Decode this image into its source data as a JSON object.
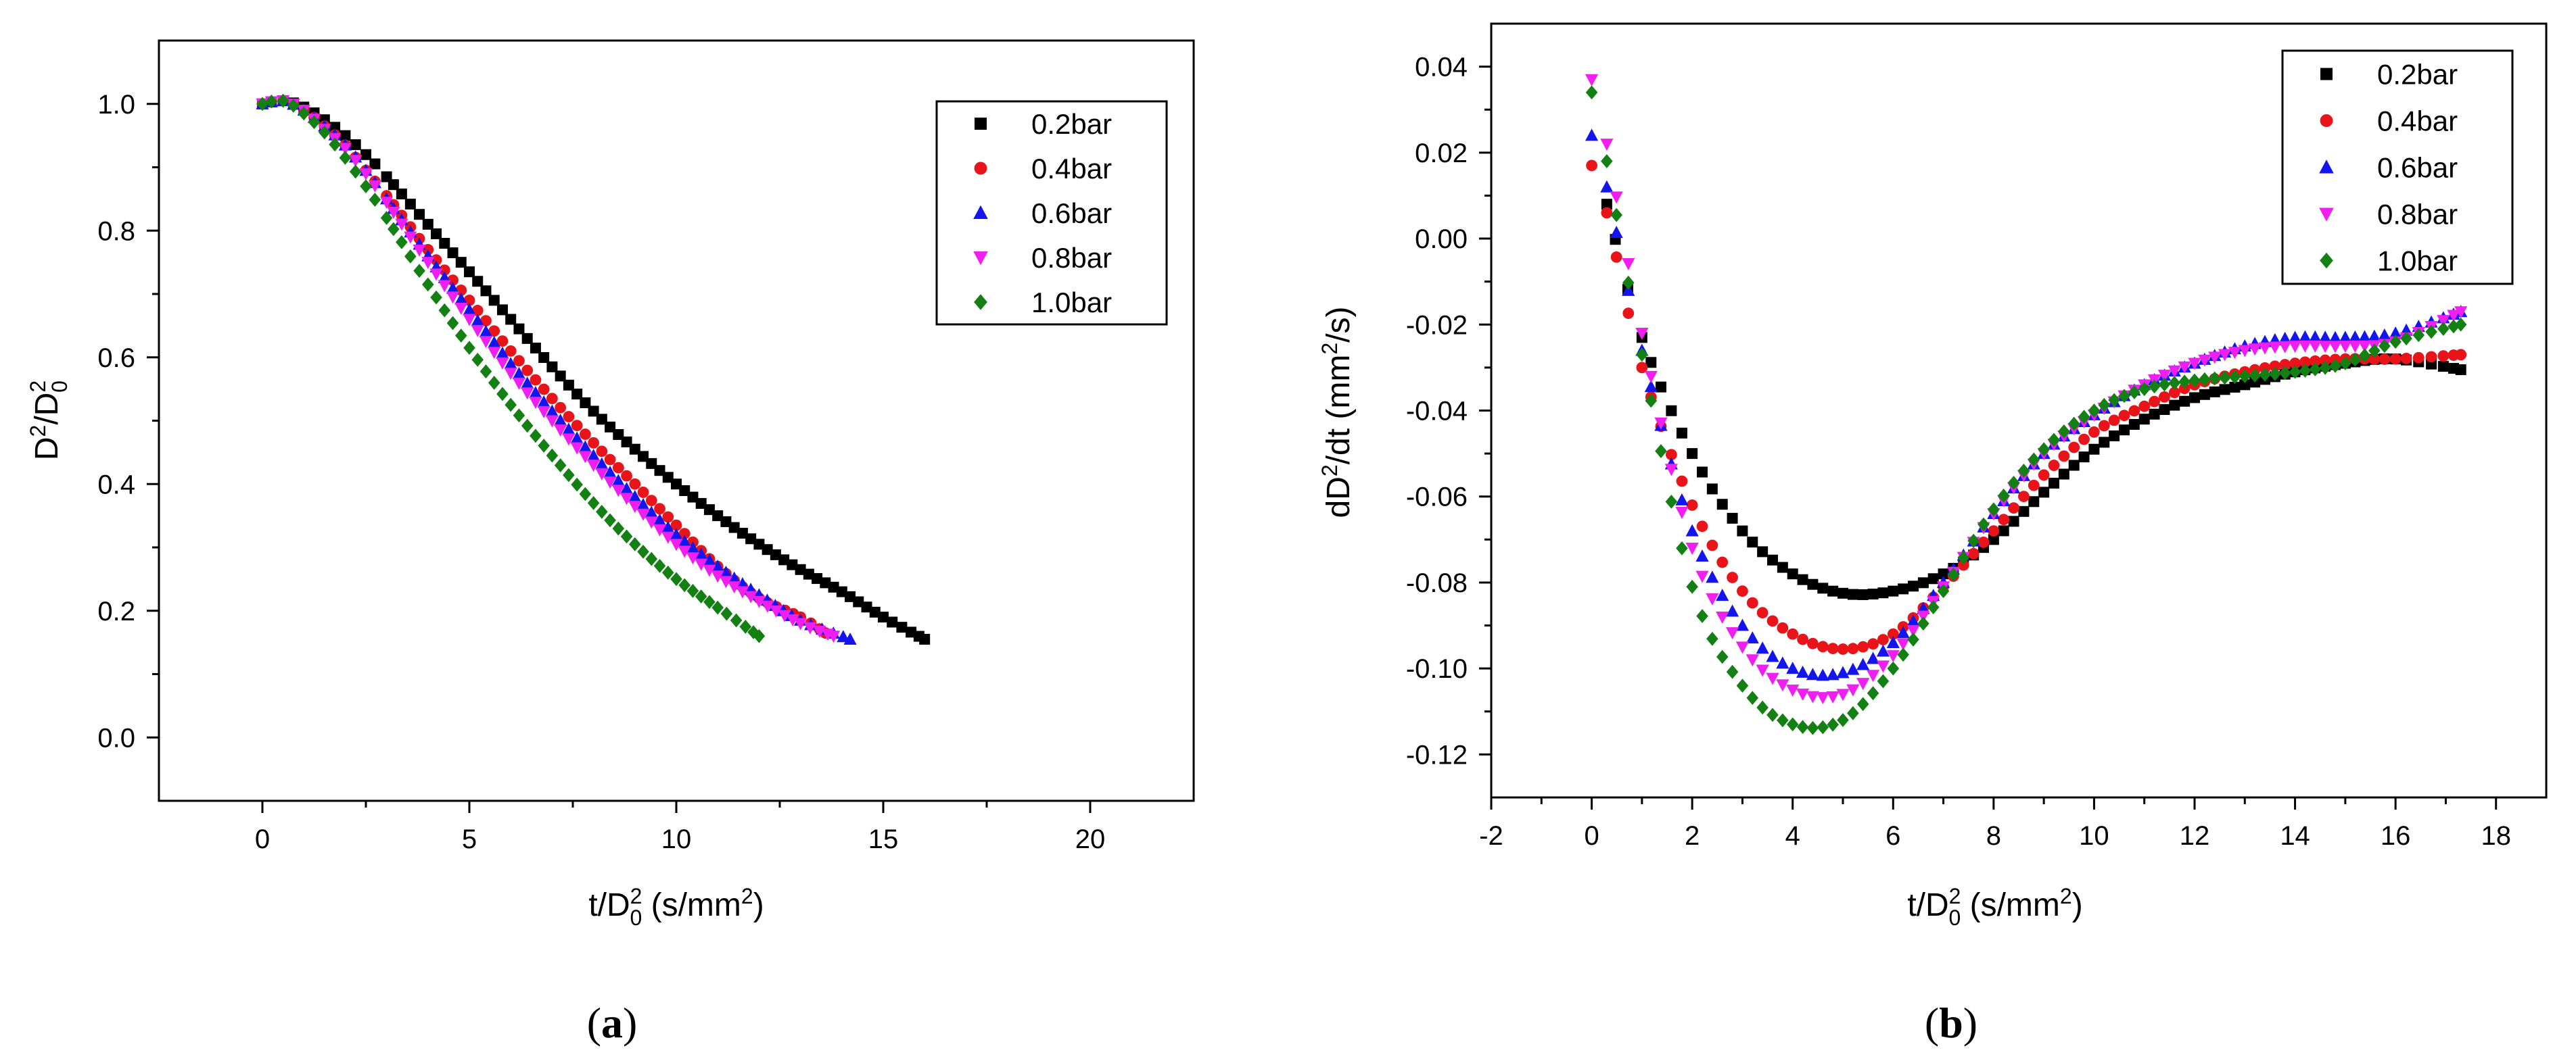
{
  "chart_data": [
    {
      "type": "scatter",
      "panel_label_open": "(",
      "panel_label_letter": "a",
      "panel_label_close": ")",
      "xlabel_main": "t/D",
      "xlabel_sup": "2",
      "xlabel_sub": "0",
      "xlabel_units_open": " (s/mm",
      "xlabel_units_sup": "2",
      "xlabel_units_close": ")",
      "ylabel_main": "D",
      "ylabel_sup1": "2",
      "ylabel_mid": "/D",
      "ylabel_sup2": "2",
      "ylabel_sub2": "0",
      "xlim": [
        -2.5,
        22.5
      ],
      "ylim": [
        -0.1,
        1.1
      ],
      "xticks": [
        0,
        5,
        10,
        15,
        20
      ],
      "xtick_labels": [
        "0",
        "5",
        "10",
        "15",
        "20"
      ],
      "yticks": [
        0.0,
        0.2,
        0.4,
        0.6,
        0.8,
        1.0
      ],
      "ytick_labels": [
        "0.0",
        "0.2",
        "0.4",
        "0.6",
        "0.8",
        "1.0"
      ],
      "legend_position": "top-right",
      "series": [
        {
          "name": "0.2bar",
          "color": "#000000",
          "marker": "square",
          "x_end": 16.0,
          "points": [
            [
              0,
              1.0
            ],
            [
              0.5,
              1.005
            ],
            [
              1,
              0.995
            ],
            [
              1.5,
              0.975
            ],
            [
              2,
              0.95
            ],
            [
              2.5,
              0.92
            ],
            [
              3,
              0.885
            ],
            [
              4,
              0.81
            ],
            [
              5,
              0.735
            ],
            [
              6,
              0.66
            ],
            [
              7,
              0.585
            ],
            [
              8,
              0.515
            ],
            [
              9,
              0.455
            ],
            [
              10,
              0.4
            ],
            [
              11,
              0.35
            ],
            [
              12,
              0.305
            ],
            [
              13,
              0.265
            ],
            [
              14,
              0.23
            ],
            [
              15,
              0.19
            ],
            [
              16,
              0.155
            ]
          ]
        },
        {
          "name": "0.4bar",
          "color": "#e8141a",
          "marker": "circle",
          "x_end": 13.6,
          "points": [
            [
              0,
              1.0
            ],
            [
              0.5,
              1.005
            ],
            [
              1,
              0.99
            ],
            [
              1.5,
              0.965
            ],
            [
              2,
              0.935
            ],
            [
              2.5,
              0.895
            ],
            [
              3,
              0.855
            ],
            [
              4,
              0.77
            ],
            [
              5,
              0.69
            ],
            [
              6,
              0.61
            ],
            [
              7,
              0.535
            ],
            [
              8,
              0.465
            ],
            [
              9,
              0.4
            ],
            [
              10,
              0.335
            ],
            [
              11,
              0.27
            ],
            [
              12,
              0.22
            ],
            [
              13,
              0.19
            ],
            [
              13.6,
              0.165
            ]
          ]
        },
        {
          "name": "0.6bar",
          "color": "#1414ee",
          "marker": "triangle-up",
          "x_end": 14.2,
          "points": [
            [
              0,
              1.0
            ],
            [
              0.5,
              1.005
            ],
            [
              1,
              0.99
            ],
            [
              1.5,
              0.965
            ],
            [
              2,
              0.935
            ],
            [
              2.5,
              0.895
            ],
            [
              3,
              0.85
            ],
            [
              4,
              0.76
            ],
            [
              5,
              0.675
            ],
            [
              6,
              0.59
            ],
            [
              7,
              0.515
            ],
            [
              8,
              0.445
            ],
            [
              9,
              0.38
            ],
            [
              10,
              0.32
            ],
            [
              11,
              0.27
            ],
            [
              12,
              0.225
            ],
            [
              13,
              0.185
            ],
            [
              14.2,
              0.155
            ]
          ]
        },
        {
          "name": "0.8bar",
          "color": "#f01ef0",
          "marker": "triangle-down",
          "x_end": 13.8,
          "points": [
            [
              0,
              1.0
            ],
            [
              0.5,
              1.005
            ],
            [
              1,
              0.99
            ],
            [
              1.5,
              0.96
            ],
            [
              2,
              0.93
            ],
            [
              2.5,
              0.89
            ],
            [
              3,
              0.845
            ],
            [
              4,
              0.75
            ],
            [
              5,
              0.66
            ],
            [
              6,
              0.575
            ],
            [
              7,
              0.5
            ],
            [
              8,
              0.43
            ],
            [
              9,
              0.365
            ],
            [
              10,
              0.305
            ],
            [
              11,
              0.255
            ],
            [
              12,
              0.215
            ],
            [
              13,
              0.18
            ],
            [
              13.8,
              0.16
            ]
          ]
        },
        {
          "name": "1.0bar",
          "color": "#128012",
          "marker": "diamond",
          "x_end": 12.0,
          "points": [
            [
              0,
              1.0
            ],
            [
              0.5,
              1.005
            ],
            [
              1,
              0.985
            ],
            [
              1.5,
              0.955
            ],
            [
              2,
              0.915
            ],
            [
              2.5,
              0.87
            ],
            [
              3,
              0.82
            ],
            [
              4,
              0.715
            ],
            [
              5,
              0.615
            ],
            [
              6,
              0.525
            ],
            [
              7,
              0.445
            ],
            [
              8,
              0.37
            ],
            [
              9,
              0.305
            ],
            [
              10,
              0.25
            ],
            [
              11,
              0.205
            ],
            [
              12,
              0.16
            ]
          ]
        }
      ]
    },
    {
      "type": "scatter",
      "panel_label_open": "(",
      "panel_label_letter": "b",
      "panel_label_close": ")",
      "xlabel_main": "t/D",
      "xlabel_sup": "2",
      "xlabel_sub": "0",
      "xlabel_units_open": " (s/mm",
      "xlabel_units_sup": "2",
      "xlabel_units_close": ")",
      "ylabel_main": "dD",
      "ylabel_sup1": "2",
      "ylabel_mid": "/dt (mm",
      "ylabel_sup2": "2",
      "ylabel_end": "/s)",
      "xlim": [
        -2,
        19
      ],
      "ylim": [
        -0.13,
        0.05
      ],
      "xticks": [
        -2,
        0,
        2,
        4,
        6,
        8,
        10,
        12,
        14,
        16,
        18
      ],
      "xtick_labels": [
        "-2",
        "0",
        "2",
        "4",
        "6",
        "8",
        "10",
        "12",
        "14",
        "16",
        "18"
      ],
      "yticks": [
        0.04,
        0.02,
        0.0,
        -0.02,
        -0.04,
        -0.06,
        -0.08,
        -0.1,
        -0.12
      ],
      "ytick_labels": [
        "0.04",
        "0.02",
        "0.00",
        "-0.02",
        "-0.04",
        "-0.06",
        "-0.08",
        "-0.10",
        "-0.12"
      ],
      "legend_position": "top-right",
      "series": [
        {
          "name": "0.2bar",
          "color": "#000000",
          "marker": "square",
          "points": [
            [
              0.3,
              0.008
            ],
            [
              1,
              -0.023
            ],
            [
              2,
              -0.05
            ],
            [
              3,
              -0.068
            ],
            [
              4,
              -0.078
            ],
            [
              5,
              -0.0825
            ],
            [
              6,
              -0.082
            ],
            [
              7,
              -0.078
            ],
            [
              8,
              -0.07
            ],
            [
              9,
              -0.059
            ],
            [
              10,
              -0.049
            ],
            [
              11,
              -0.042
            ],
            [
              12,
              -0.037
            ],
            [
              13,
              -0.034
            ],
            [
              14,
              -0.031
            ],
            [
              15,
              -0.029
            ],
            [
              16,
              -0.028
            ],
            [
              17.3,
              -0.0305
            ]
          ]
        },
        {
          "name": "0.4bar",
          "color": "#e8141a",
          "marker": "circle",
          "points": [
            [
              0.0,
              0.017
            ],
            [
              0.3,
              0.006
            ],
            [
              1,
              -0.03
            ],
            [
              2,
              -0.062
            ],
            [
              3,
              -0.082
            ],
            [
              4,
              -0.092
            ],
            [
              5,
              -0.0955
            ],
            [
              6,
              -0.092
            ],
            [
              7,
              -0.081
            ],
            [
              8,
              -0.068
            ],
            [
              9,
              -0.055
            ],
            [
              10,
              -0.045
            ],
            [
              11,
              -0.039
            ],
            [
              12,
              -0.034
            ],
            [
              13,
              -0.031
            ],
            [
              14,
              -0.029
            ],
            [
              15,
              -0.028
            ],
            [
              16,
              -0.028
            ],
            [
              17.3,
              -0.027
            ]
          ]
        },
        {
          "name": "0.6bar",
          "color": "#1414ee",
          "marker": "triangle-up",
          "points": [
            [
              0.0,
              0.024
            ],
            [
              0.3,
              0.012
            ],
            [
              1,
              -0.026
            ],
            [
              2,
              -0.068
            ],
            [
              3,
              -0.09
            ],
            [
              4,
              -0.1
            ],
            [
              5,
              -0.101
            ],
            [
              6,
              -0.094
            ],
            [
              7,
              -0.08
            ],
            [
              8,
              -0.064
            ],
            [
              9,
              -0.05
            ],
            [
              10,
              -0.041
            ],
            [
              11,
              -0.034
            ],
            [
              12,
              -0.029
            ],
            [
              13,
              -0.025
            ],
            [
              14,
              -0.023
            ],
            [
              15,
              -0.023
            ],
            [
              16,
              -0.022
            ],
            [
              17.3,
              -0.017
            ]
          ]
        },
        {
          "name": "0.8bar",
          "color": "#f01ef0",
          "marker": "triangle-down",
          "points": [
            [
              0.0,
              0.037
            ],
            [
              0.3,
              0.022
            ],
            [
              1,
              -0.022
            ],
            [
              2,
              -0.072
            ],
            [
              3,
              -0.095
            ],
            [
              4,
              -0.105
            ],
            [
              5,
              -0.106
            ],
            [
              6,
              -0.097
            ],
            [
              7,
              -0.081
            ],
            [
              8,
              -0.064
            ],
            [
              9,
              -0.05
            ],
            [
              10,
              -0.041
            ],
            [
              11,
              -0.034
            ],
            [
              12,
              -0.029
            ],
            [
              13,
              -0.026
            ],
            [
              14,
              -0.025
            ],
            [
              15,
              -0.025
            ],
            [
              16,
              -0.024
            ],
            [
              17.3,
              -0.017
            ]
          ]
        },
        {
          "name": "1.0bar",
          "color": "#128012",
          "marker": "diamond",
          "points": [
            [
              0.0,
              0.034
            ],
            [
              0.3,
              0.018
            ],
            [
              1,
              -0.027
            ],
            [
              2,
              -0.081
            ],
            [
              3,
              -0.104
            ],
            [
              4,
              -0.113
            ],
            [
              5,
              -0.112
            ],
            [
              6,
              -0.1
            ],
            [
              7,
              -0.082
            ],
            [
              8,
              -0.063
            ],
            [
              9,
              -0.049
            ],
            [
              10,
              -0.04
            ],
            [
              11,
              -0.035
            ],
            [
              12,
              -0.033
            ],
            [
              13,
              -0.032
            ],
            [
              14,
              -0.031
            ],
            [
              15,
              -0.029
            ],
            [
              16,
              -0.024
            ],
            [
              17.3,
              -0.02
            ]
          ]
        }
      ]
    }
  ]
}
